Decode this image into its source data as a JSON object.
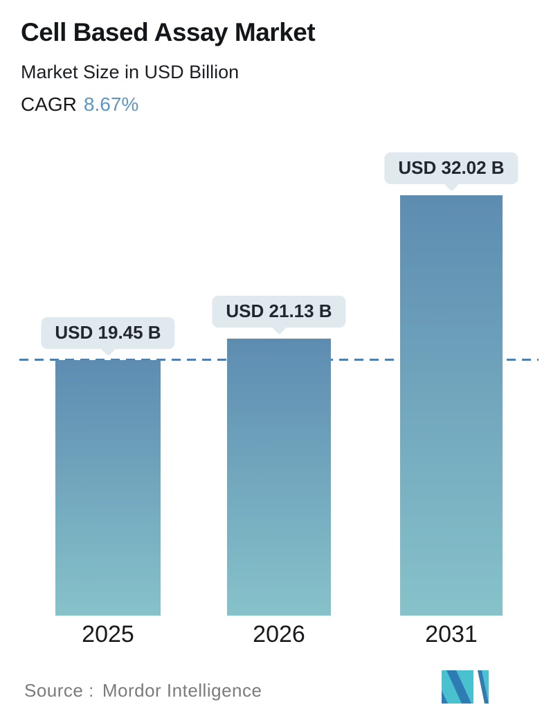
{
  "header": {
    "title": "Cell Based Assay Market",
    "subtitle": "Market Size in USD Billion",
    "cagr_label": "CAGR",
    "cagr_value": "8.67%"
  },
  "chart_data": {
    "type": "bar",
    "categories": [
      "2025",
      "2026",
      "2031"
    ],
    "values": [
      19.45,
      21.13,
      32.02
    ],
    "labels": [
      "USD 19.45 B",
      "USD 21.13 B",
      "USD 32.02 B"
    ],
    "title": "Cell Based Assay Market",
    "xlabel": "",
    "ylabel": "Market Size in USD Billion",
    "ylim": [
      0,
      35
    ],
    "grid": false,
    "legend": false,
    "cagr_percent": 8.67,
    "reference_line": {
      "value": 19.45,
      "style": "dashed"
    },
    "bar_gradient": {
      "top": "#5d8cb1",
      "bottom": "#87c2ca"
    }
  },
  "footer": {
    "source_label": "Source :",
    "source_value": "Mordor Intelligence",
    "logo": "mordor-intelligence-logo"
  },
  "colors": {
    "accent_blue": "#5f95c5",
    "dashed_line": "#4d80ae",
    "tooltip_bg": "#dfe9ee",
    "tooltip_text": "#21272c",
    "bar_top": "#5d8cb1",
    "bar_bottom": "#87c2ca",
    "source_text": "#7b7b7b",
    "logo_teal": "#4ac1ce",
    "logo_blue": "#2e7cb4"
  }
}
